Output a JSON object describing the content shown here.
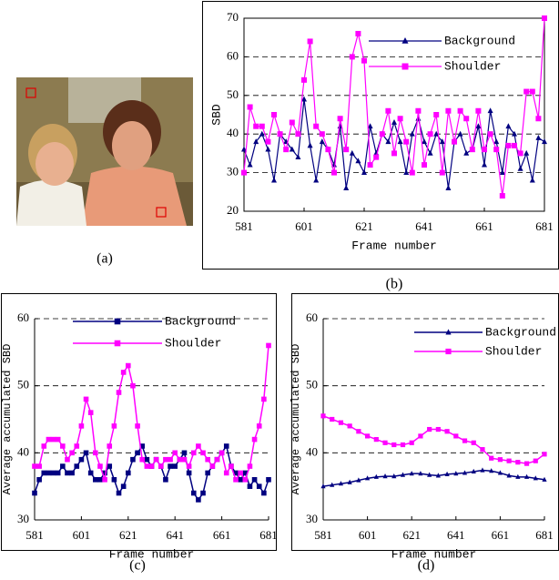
{
  "image": {
    "caption": "(a)"
  },
  "chart_data": [
    {
      "type": "line",
      "caption": "(b)",
      "y_label": "SBD",
      "x_label": "Frame number",
      "x": [
        581,
        583,
        585,
        587,
        589,
        591,
        593,
        595,
        597,
        599,
        601,
        603,
        605,
        607,
        609,
        611,
        613,
        615,
        617,
        619,
        621,
        623,
        625,
        627,
        629,
        631,
        633,
        635,
        637,
        639,
        641,
        643,
        645,
        647,
        649,
        651,
        653,
        655,
        657,
        659,
        661,
        663,
        665,
        667,
        669,
        671,
        673,
        675,
        677,
        679,
        681
      ],
      "xlim": [
        581,
        681
      ],
      "xticks": [
        581,
        601,
        621,
        641,
        661,
        681
      ],
      "ylim": [
        20,
        70
      ],
      "yticks": [
        20,
        30,
        40,
        50,
        60,
        70
      ],
      "grid": true,
      "series": [
        {
          "name": "Background",
          "color": "#000080",
          "marker": "triangle",
          "values": [
            36,
            32,
            38,
            40,
            36,
            28,
            40,
            38,
            36,
            34,
            49,
            37,
            28,
            38,
            36,
            32,
            42,
            26,
            35,
            33,
            30,
            42,
            35,
            40,
            38,
            43,
            38,
            30,
            40,
            44,
            38,
            35,
            40,
            38,
            26,
            38,
            40,
            35,
            36,
            42,
            32,
            46,
            38,
            30,
            42,
            40,
            31,
            35,
            28,
            39,
            38
          ]
        },
        {
          "name": "Shoulder",
          "color": "#ff00ff",
          "marker": "square",
          "values": [
            30,
            47,
            42,
            42,
            38,
            45,
            40,
            36,
            43,
            40,
            54,
            64,
            42,
            40,
            36,
            30,
            44,
            36,
            60,
            66,
            59,
            32,
            34,
            40,
            46,
            35,
            44,
            38,
            30,
            46,
            32,
            40,
            45,
            30,
            46,
            38,
            46,
            44,
            36,
            46,
            36,
            40,
            36,
            24,
            37,
            37,
            35,
            51,
            51,
            44,
            70
          ]
        }
      ]
    },
    {
      "type": "line",
      "caption": "(c)",
      "y_label": "Average accumulated SBD",
      "x_label": "Frame number",
      "x": [
        581,
        583,
        585,
        587,
        589,
        591,
        593,
        595,
        597,
        599,
        601,
        603,
        605,
        607,
        609,
        611,
        613,
        615,
        617,
        619,
        621,
        623,
        625,
        627,
        629,
        631,
        633,
        635,
        637,
        639,
        641,
        643,
        645,
        647,
        649,
        651,
        653,
        655,
        657,
        659,
        661,
        663,
        665,
        667,
        669,
        671,
        673,
        675,
        677,
        679,
        681
      ],
      "xlim": [
        581,
        681
      ],
      "xticks": [
        581,
        601,
        621,
        641,
        661,
        681
      ],
      "ylim": [
        30,
        60
      ],
      "yticks": [
        30,
        40,
        50,
        60
      ],
      "grid": true,
      "series": [
        {
          "name": "Background",
          "color": "#000080",
          "marker": "square",
          "values": [
            34,
            36,
            37,
            37,
            37,
            37,
            38,
            37,
            37,
            38,
            39,
            40,
            37,
            36,
            36,
            37,
            38,
            36,
            34,
            35,
            37,
            39,
            40,
            41,
            39,
            38,
            39,
            38,
            36,
            38,
            38,
            39,
            40,
            37,
            34,
            33,
            34,
            37,
            38,
            39,
            40,
            41,
            38,
            37,
            36,
            37,
            35,
            36,
            35,
            34,
            36
          ]
        },
        {
          "name": "Shoulder",
          "color": "#ff00ff",
          "marker": "square",
          "values": [
            38,
            38,
            41,
            42,
            42,
            42,
            41,
            39,
            40,
            41,
            44,
            48,
            46,
            40,
            38,
            36,
            41,
            44,
            49,
            52,
            53,
            50,
            44,
            39,
            38,
            38,
            39,
            38,
            39,
            39,
            40,
            39,
            39,
            38,
            40,
            41,
            40,
            39,
            38,
            39,
            40,
            37,
            38,
            36,
            37,
            36,
            38,
            42,
            44,
            48,
            56
          ]
        }
      ]
    },
    {
      "type": "line",
      "caption": "(d)",
      "y_label": "Average accumulated SBD",
      "x_label": "Frame number",
      "x": [
        581,
        585,
        589,
        593,
        597,
        601,
        605,
        609,
        613,
        617,
        621,
        625,
        629,
        633,
        637,
        641,
        645,
        649,
        653,
        657,
        661,
        665,
        669,
        673,
        677,
        681
      ],
      "xlim": [
        581,
        681
      ],
      "xticks": [
        581,
        601,
        621,
        641,
        661,
        681
      ],
      "ylim": [
        30,
        60
      ],
      "yticks": [
        30,
        40,
        50,
        60
      ],
      "grid": true,
      "series": [
        {
          "name": "Background",
          "color": "#000080",
          "marker": "triangle",
          "values": [
            35,
            35.2,
            35.4,
            35.6,
            35.9,
            36.2,
            36.4,
            36.5,
            36.5,
            36.7,
            36.9,
            36.9,
            36.7,
            36.6,
            36.8,
            36.9,
            37,
            37.2,
            37.4,
            37.3,
            37,
            36.6,
            36.4,
            36.4,
            36.2,
            36
          ]
        },
        {
          "name": "Shoulder",
          "color": "#ff00ff",
          "marker": "square",
          "values": [
            45.5,
            45,
            44.5,
            44,
            43.2,
            42.5,
            42,
            41.5,
            41.2,
            41.2,
            41.5,
            42.5,
            43.5,
            43.5,
            43.2,
            42.5,
            41.8,
            41.5,
            40.5,
            39.2,
            39,
            38.8,
            38.6,
            38.4,
            38.8,
            39.8
          ]
        }
      ]
    }
  ]
}
